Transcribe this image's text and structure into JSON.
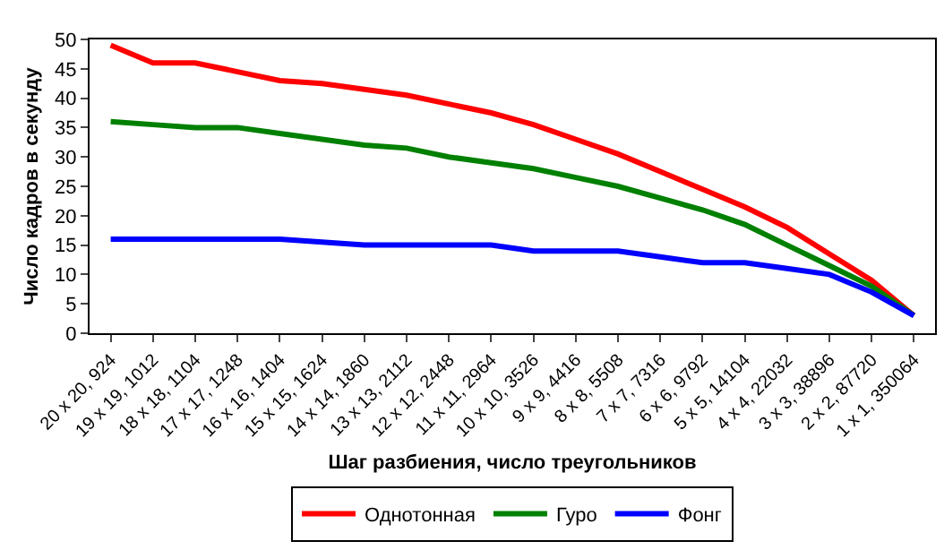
{
  "chart_data": {
    "type": "line",
    "xlabel": "Шаг разбиения, число треугольников",
    "ylabel": "Число кадров в секунду",
    "categories": [
      "20 x 20, 924",
      "19 x 19, 1012",
      "18 x 18, 1104",
      "17 x 17, 1248",
      "16 x 16, 1404",
      "15 x 15, 1624",
      "14 x 14, 1860",
      "13 x 13, 2112",
      "12 x 12, 2448",
      "11 x 11, 2964",
      "10 x 10, 3526",
      "9 x 9, 4416",
      "8 x 8, 5508",
      "7 x 7, 7316",
      "6 x 6, 9792",
      "5 x 5, 14104",
      "4 x 4, 22032",
      "3 x 3, 38896",
      "2 x 2, 87720",
      "1 x 1, 350064"
    ],
    "series": [
      {
        "name": "Однотонная",
        "color": "#ff0000",
        "values": [
          49,
          46,
          46,
          44.5,
          43,
          42.5,
          41.5,
          40.5,
          39,
          37.5,
          35.5,
          33,
          30.5,
          27.5,
          24.5,
          21.5,
          18,
          13.5,
          9,
          3
        ]
      },
      {
        "name": "Гуро",
        "color": "#008000",
        "values": [
          36,
          35.5,
          35,
          35,
          34,
          33,
          32,
          31.5,
          30,
          29,
          28,
          26.5,
          25,
          23,
          21,
          18.5,
          15,
          11.5,
          8,
          3
        ]
      },
      {
        "name": "Фонг",
        "color": "#0000ff",
        "values": [
          16,
          16,
          16,
          16,
          16,
          15.5,
          15,
          15,
          15,
          15,
          14,
          14,
          14,
          13,
          12,
          12,
          11,
          10,
          7,
          3
        ]
      }
    ],
    "ylim": [
      0,
      50
    ],
    "yticks": [
      0,
      5,
      10,
      15,
      20,
      25,
      30,
      35,
      40,
      45,
      50
    ],
    "grid": false,
    "legend": "bottom",
    "marker": "none",
    "line_style": "solid"
  }
}
